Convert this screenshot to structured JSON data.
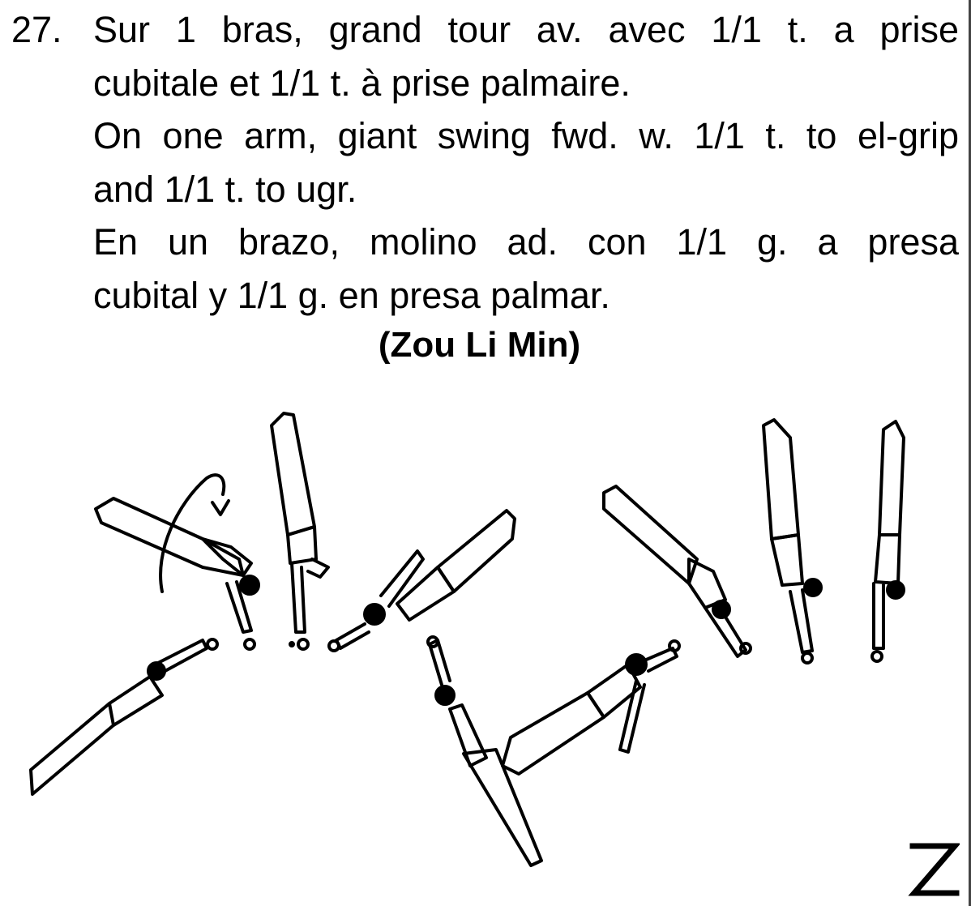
{
  "element": {
    "number": "27.",
    "description_fr": [
      "Sur 1 bras, grand tour av. avec 1/1 t. a prise",
      "cubitale et 1/1 t. à prise palmaire."
    ],
    "description_en": [
      "On one arm, giant swing fwd. w. 1/1 t. to el-grip",
      "and 1/1 t. to ugr."
    ],
    "description_es": [
      "En un brazo, molino ad. con 1/1 g. a presa",
      "cubital y 1/1 g. en presa palmar."
    ],
    "named_after": "(Zou Li Min)"
  },
  "illustration": {
    "icon": "gymnast-sequence-drawing",
    "stroke_color": "#000000"
  },
  "difficulty_mark": {
    "icon": "z-difficulty-letter",
    "lettering": "Z"
  }
}
